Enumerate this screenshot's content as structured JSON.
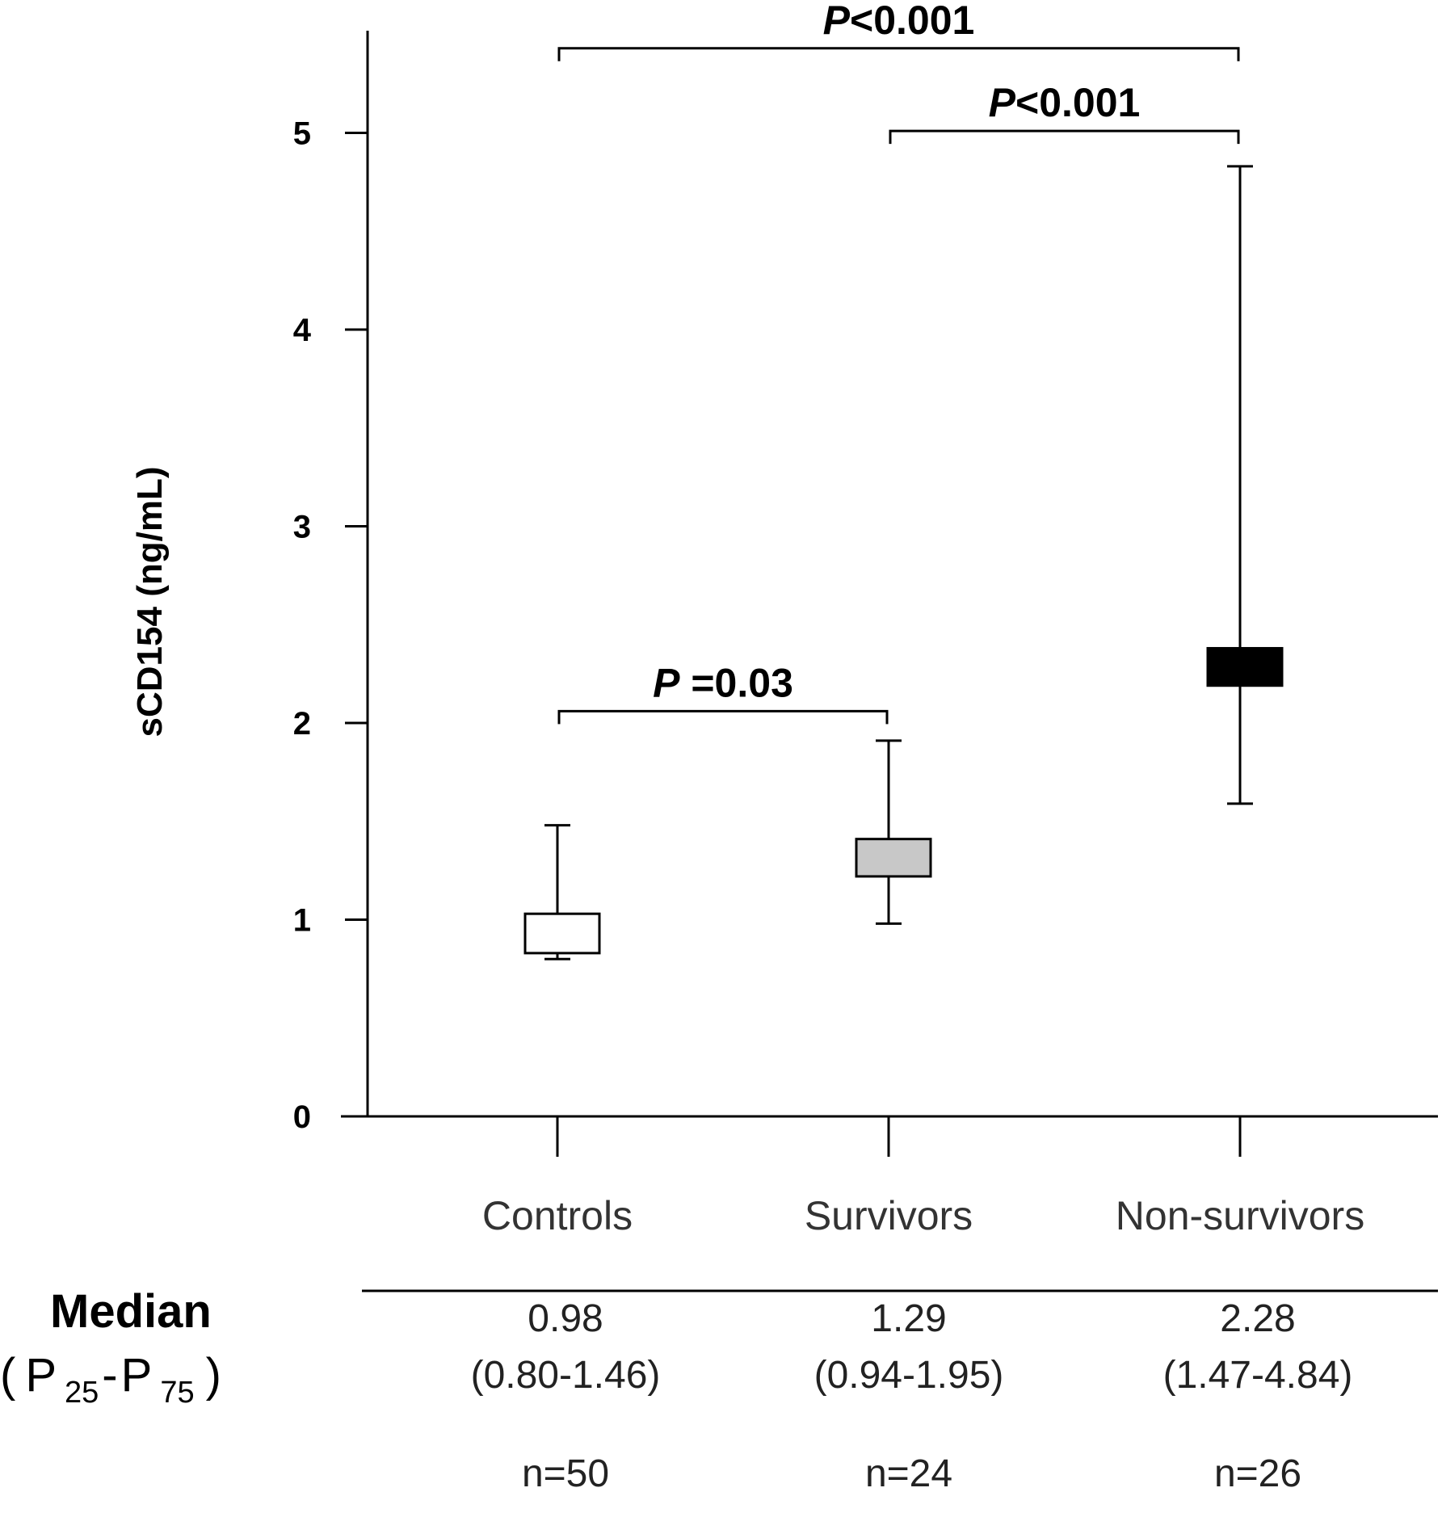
{
  "chart_data": {
    "type": "box",
    "ylabel": "sCD154 (ng/mL)",
    "ylim": [
      0,
      5.5
    ],
    "yticks": [
      0,
      1,
      2,
      3,
      4,
      5
    ],
    "categories": [
      "Controls",
      "Survivors",
      "Non-survivors"
    ],
    "groups": [
      {
        "name": "Controls",
        "box_low": 0.83,
        "box_high": 1.03,
        "whisker_low": 0.8,
        "whisker_high": 1.48,
        "fill": "#ffffff",
        "median": "0.98",
        "iqr": "(0.80-1.46)",
        "n": "n=50"
      },
      {
        "name": "Survivors",
        "box_low": 1.22,
        "box_high": 1.41,
        "whisker_low": 0.98,
        "whisker_high": 1.91,
        "fill": "#c8c8c8",
        "median": "1.29",
        "iqr": "(0.94-1.95)",
        "n": "n=24"
      },
      {
        "name": "Non-survivors",
        "box_low": 2.19,
        "box_high": 2.38,
        "whisker_low": 1.59,
        "whisker_high": 4.83,
        "fill": "#000000",
        "median": "2.28",
        "iqr": "(1.47-4.84)",
        "n": "n=26"
      }
    ],
    "comparisons": [
      {
        "from": 0,
        "to": 1,
        "y": 2.06,
        "p_symbol": "P",
        "p_text": " =0.03"
      },
      {
        "from": 1,
        "to": 2,
        "y": 5.01,
        "p_symbol": "P",
        "p_text": "<0.001"
      },
      {
        "from": 0,
        "to": 2,
        "y": 5.43,
        "p_symbol": "P",
        "p_text": "<0.001"
      }
    ],
    "summary_row": {
      "title": "Median",
      "subtitle_open": "(",
      "p25_p": "P",
      "p25_sub": "25",
      "dash": "-",
      "p75_p": "P",
      "p75_sub": "75",
      "subtitle_close": ")"
    }
  }
}
